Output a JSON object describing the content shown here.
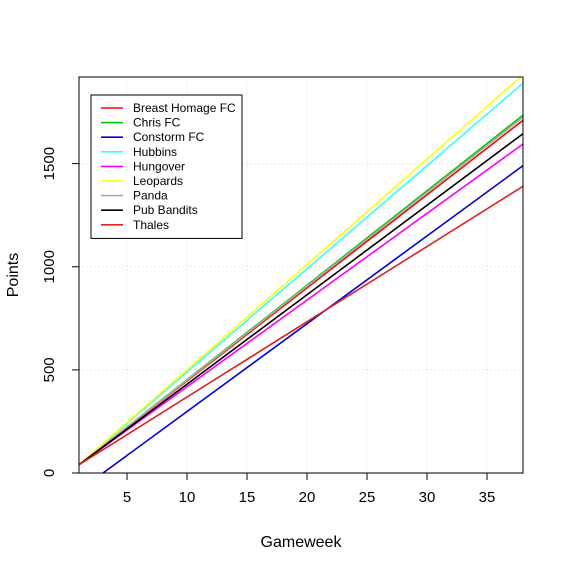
{
  "chart_data": {
    "type": "line",
    "title": "",
    "xlabel": "Gameweek",
    "ylabel": "Points",
    "xlim": [
      1,
      38
    ],
    "ylim": [
      0,
      1920
    ],
    "xticks": [
      5,
      10,
      15,
      20,
      25,
      30,
      35
    ],
    "yticks": [
      0,
      500,
      1000,
      1500
    ],
    "grid": true,
    "legend_position": "top-left",
    "series": [
      {
        "name": "Breast Homage FC",
        "color": "#ff0000",
        "x": [
          1,
          38
        ],
        "y": [
          40,
          1710
        ]
      },
      {
        "name": "Chris FC",
        "color": "#00cc00",
        "x": [
          1,
          38
        ],
        "y": [
          40,
          1735
        ]
      },
      {
        "name": "Constorm FC",
        "color": "#0000dd",
        "x": [
          3,
          38
        ],
        "y": [
          0,
          1490
        ]
      },
      {
        "name": "Hubbins",
        "color": "#33ffff",
        "x": [
          1,
          38
        ],
        "y": [
          40,
          1890
        ]
      },
      {
        "name": "Hungover",
        "color": "#ff00ff",
        "x": [
          1,
          38
        ],
        "y": [
          40,
          1595
        ]
      },
      {
        "name": "Leopards",
        "color": "#ffff00",
        "x": [
          1,
          38
        ],
        "y": [
          40,
          1930
        ]
      },
      {
        "name": "Panda",
        "color": "#aaaaaa",
        "x": [
          1,
          38
        ],
        "y": [
          40,
          1725
        ]
      },
      {
        "name": "Pub Bandits",
        "color": "#000000",
        "x": [
          1,
          38
        ],
        "y": [
          40,
          1645
        ]
      },
      {
        "name": "Thales",
        "color": "#dd2222",
        "x": [
          1,
          38
        ],
        "y": [
          40,
          1390
        ]
      }
    ]
  }
}
